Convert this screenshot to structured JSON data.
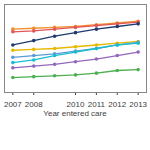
{
  "chart_data": {
    "type": "line",
    "x_label": "Year entered care",
    "x": [
      2007,
      2008,
      2009,
      2010,
      2011,
      2012,
      2013
    ],
    "xlim": [
      2006.6,
      2013.4
    ],
    "xticks": [
      2007,
      2008,
      2010,
      2011,
      2012,
      2013
    ],
    "ylim": [
      0,
      100
    ],
    "tick_labels": "x",
    "grid": false,
    "marker": "circle",
    "series": [
      {
        "color": "#f28e2b",
        "values": [
          72,
          73,
          74,
          75,
          77,
          79,
          81
        ]
      },
      {
        "color": "#e15759",
        "values": [
          69,
          70,
          72,
          74,
          76,
          78,
          80
        ]
      },
      {
        "color": "#1f3a6e",
        "values": [
          54,
          59,
          64,
          68,
          72,
          75,
          78
        ]
      },
      {
        "color": "#e6b800",
        "values": [
          48,
          49,
          50,
          52,
          54,
          56,
          58
        ]
      },
      {
        "color": "#5b9bd5",
        "values": [
          40,
          42,
          44,
          47,
          50,
          54,
          57
        ]
      },
      {
        "color": "#17becf",
        "values": [
          34,
          37,
          42,
          46,
          50,
          54,
          56
        ]
      },
      {
        "color": "#9467bd",
        "values": [
          28,
          30,
          32,
          35,
          38,
          42,
          46
        ]
      },
      {
        "color": "#4caf50",
        "values": [
          17,
          18,
          19,
          20,
          22,
          25,
          26
        ]
      }
    ]
  }
}
